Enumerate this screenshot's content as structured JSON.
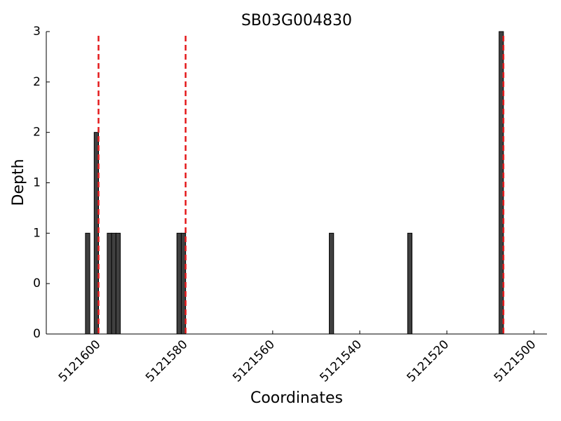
{
  "chart_data": {
    "type": "bar",
    "title": "SB03G004830",
    "xlabel": "Coordinates",
    "ylabel": "Depth",
    "x": [
      5121602,
      5121600,
      5121597,
      5121596,
      5121595,
      5121581,
      5121580,
      5121546,
      5121528,
      5121507
    ],
    "values": [
      1,
      2,
      1,
      1,
      1,
      1,
      1,
      1,
      1,
      3
    ],
    "color": "#404040",
    "xlim": [
      5121612,
      5121497
    ],
    "xticks": [
      5121600,
      5121580,
      5121560,
      5121540,
      5121520,
      5121500
    ],
    "ylim": [
      0,
      3
    ],
    "yticks": [
      {
        "value": 0,
        "label": "0"
      },
      {
        "value": 0.5,
        "label": "0"
      },
      {
        "value": 1,
        "label": "1"
      },
      {
        "value": 1.5,
        "label": "1"
      },
      {
        "value": 2,
        "label": "2"
      },
      {
        "value": 2.5,
        "label": "2"
      },
      {
        "value": 3,
        "label": "3"
      }
    ],
    "vlines": [
      5121600,
      5121580,
      5121507
    ],
    "vline_color": "#e41a1c"
  }
}
